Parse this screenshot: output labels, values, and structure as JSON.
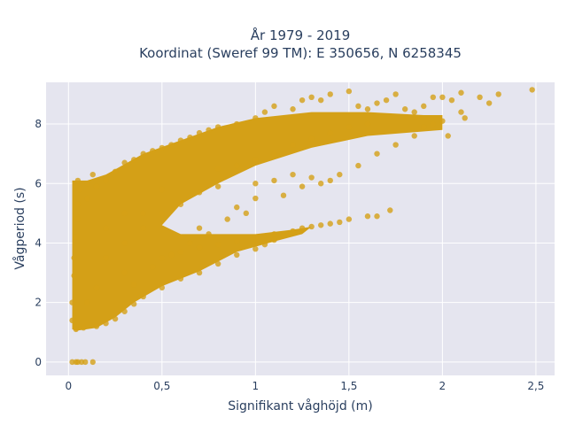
{
  "chart_data": {
    "type": "scatter",
    "title_lines": [
      "År 1979 - 2019",
      "Koordinat (Sweref 99 TM): E 350656, N 6258345"
    ],
    "xlabel": "Signifikant våghöjd (m)",
    "ylabel": "Vågperiod (s)",
    "xlim": [
      -0.12,
      2.6
    ],
    "ylim": [
      -0.45,
      9.4
    ],
    "x_ticks": [
      0,
      0.5,
      1,
      1.5,
      2,
      2.5
    ],
    "x_tick_labels": [
      "0",
      "0,5",
      "1",
      "1,5",
      "2",
      "2,5"
    ],
    "y_ticks": [
      0,
      2,
      4,
      6,
      8
    ],
    "y_tick_labels": [
      "0",
      "2",
      "4",
      "6",
      "8"
    ],
    "grid": true,
    "marker_color": "#D4A017",
    "plot_bg": "#E5E5EF",
    "series": [
      {
        "points": [
          [
            0.02,
            0
          ],
          [
            0.04,
            0
          ],
          [
            0.05,
            0
          ],
          [
            0.07,
            0
          ],
          [
            0.09,
            0
          ],
          [
            0.13,
            0
          ],
          [
            0.04,
            1.1
          ],
          [
            0.08,
            1.15
          ],
          [
            0.15,
            1.2
          ],
          [
            0.2,
            1.3
          ],
          [
            0.25,
            1.45
          ],
          [
            0.3,
            1.7
          ],
          [
            0.35,
            1.95
          ],
          [
            0.4,
            2.2
          ],
          [
            0.5,
            2.5
          ],
          [
            0.6,
            2.8
          ],
          [
            0.7,
            3.0
          ],
          [
            0.8,
            3.3
          ],
          [
            0.9,
            3.6
          ],
          [
            1.0,
            3.8
          ],
          [
            1.05,
            3.95
          ],
          [
            1.1,
            4.1
          ],
          [
            1.15,
            4.25
          ],
          [
            0.5,
            3.5
          ],
          [
            0.6,
            3.7
          ],
          [
            0.7,
            3.85
          ],
          [
            0.8,
            3.95
          ],
          [
            0.9,
            4.05
          ],
          [
            1.0,
            4.2
          ],
          [
            1.1,
            4.3
          ],
          [
            1.2,
            4.4
          ],
          [
            1.25,
            4.5
          ],
          [
            1.3,
            4.55
          ],
          [
            1.35,
            4.6
          ],
          [
            1.4,
            4.65
          ],
          [
            1.45,
            4.7
          ],
          [
            1.5,
            4.8
          ],
          [
            1.6,
            4.9
          ],
          [
            1.65,
            4.9
          ],
          [
            1.72,
            5.1
          ],
          [
            0.02,
            1.4
          ],
          [
            0.02,
            2.0
          ],
          [
            0.03,
            2.9
          ],
          [
            0.03,
            3.5
          ],
          [
            0.04,
            4.2
          ],
          [
            0.05,
            4.8
          ],
          [
            0.05,
            5.3
          ],
          [
            0.06,
            5.8
          ],
          [
            0.05,
            6.1
          ],
          [
            0.1,
            5.5
          ],
          [
            0.1,
            6.0
          ],
          [
            0.13,
            6.3
          ],
          [
            0.15,
            5.9
          ],
          [
            0.2,
            6.1
          ],
          [
            0.25,
            6.4
          ],
          [
            0.3,
            6.7
          ],
          [
            0.35,
            6.8
          ],
          [
            0.4,
            7.0
          ],
          [
            0.45,
            7.1
          ],
          [
            0.5,
            7.2
          ],
          [
            0.55,
            7.3
          ],
          [
            0.6,
            7.45
          ],
          [
            0.65,
            7.55
          ],
          [
            0.7,
            7.7
          ],
          [
            0.75,
            7.8
          ],
          [
            0.8,
            7.9
          ],
          [
            0.9,
            8.0
          ],
          [
            1.0,
            8.2
          ],
          [
            1.05,
            8.4
          ],
          [
            1.1,
            8.6
          ],
          [
            1.2,
            8.5
          ],
          [
            1.25,
            8.8
          ],
          [
            1.3,
            8.9
          ],
          [
            1.35,
            8.8
          ],
          [
            1.4,
            9.0
          ],
          [
            1.5,
            9.1
          ],
          [
            1.55,
            8.6
          ],
          [
            1.6,
            8.5
          ],
          [
            1.65,
            8.7
          ],
          [
            1.7,
            8.8
          ],
          [
            1.75,
            9.0
          ],
          [
            1.8,
            8.5
          ],
          [
            1.85,
            8.4
          ],
          [
            1.9,
            8.6
          ],
          [
            1.95,
            8.9
          ],
          [
            2.0,
            8.9
          ],
          [
            2.05,
            8.8
          ],
          [
            2.1,
            9.05
          ],
          [
            2.2,
            8.9
          ],
          [
            2.25,
            8.7
          ],
          [
            2.3,
            9.0
          ],
          [
            2.48,
            9.15
          ],
          [
            2.03,
            7.6
          ],
          [
            2.12,
            8.2
          ],
          [
            2.0,
            8.1
          ],
          [
            1.9,
            7.9
          ],
          [
            1.0,
            6.8
          ],
          [
            1.1,
            7.0
          ],
          [
            1.2,
            7.3
          ],
          [
            1.3,
            7.5
          ],
          [
            1.4,
            7.7
          ],
          [
            1.5,
            7.9
          ],
          [
            1.6,
            8.0
          ],
          [
            0.8,
            6.5
          ],
          [
            0.9,
            6.6
          ],
          [
            1.0,
            6.0
          ],
          [
            1.1,
            6.1
          ],
          [
            1.2,
            6.3
          ],
          [
            1.3,
            6.2
          ],
          [
            1.4,
            6.1
          ],
          [
            0.5,
            5.0
          ],
          [
            0.5,
            5.8
          ],
          [
            0.4,
            5.0
          ],
          [
            0.4,
            4.5
          ],
          [
            0.6,
            5.3
          ],
          [
            0.7,
            5.7
          ],
          [
            0.8,
            5.9
          ],
          [
            0.3,
            3.0
          ],
          [
            0.3,
            4.0
          ],
          [
            0.3,
            5.0
          ],
          [
            0.2,
            3.5
          ],
          [
            0.2,
            4.5
          ],
          [
            0.15,
            2.5
          ],
          [
            0.1,
            2.0
          ],
          [
            0.6,
            4.2
          ],
          [
            0.7,
            4.5
          ],
          [
            0.9,
            5.2
          ],
          [
            1.0,
            5.5
          ],
          [
            0.35,
            2.6
          ],
          [
            0.45,
            3.2
          ],
          [
            0.55,
            3.6
          ],
          [
            0.65,
            4.0
          ],
          [
            0.75,
            4.3
          ],
          [
            0.85,
            4.8
          ],
          [
            0.95,
            5.0
          ],
          [
            1.15,
            5.6
          ],
          [
            1.25,
            5.9
          ],
          [
            1.35,
            6.0
          ],
          [
            1.45,
            6.3
          ],
          [
            1.55,
            6.6
          ],
          [
            1.65,
            7.0
          ],
          [
            1.75,
            7.3
          ],
          [
            1.85,
            7.6
          ],
          [
            1.95,
            8.0
          ],
          [
            2.1,
            8.4
          ]
        ]
      }
    ]
  }
}
